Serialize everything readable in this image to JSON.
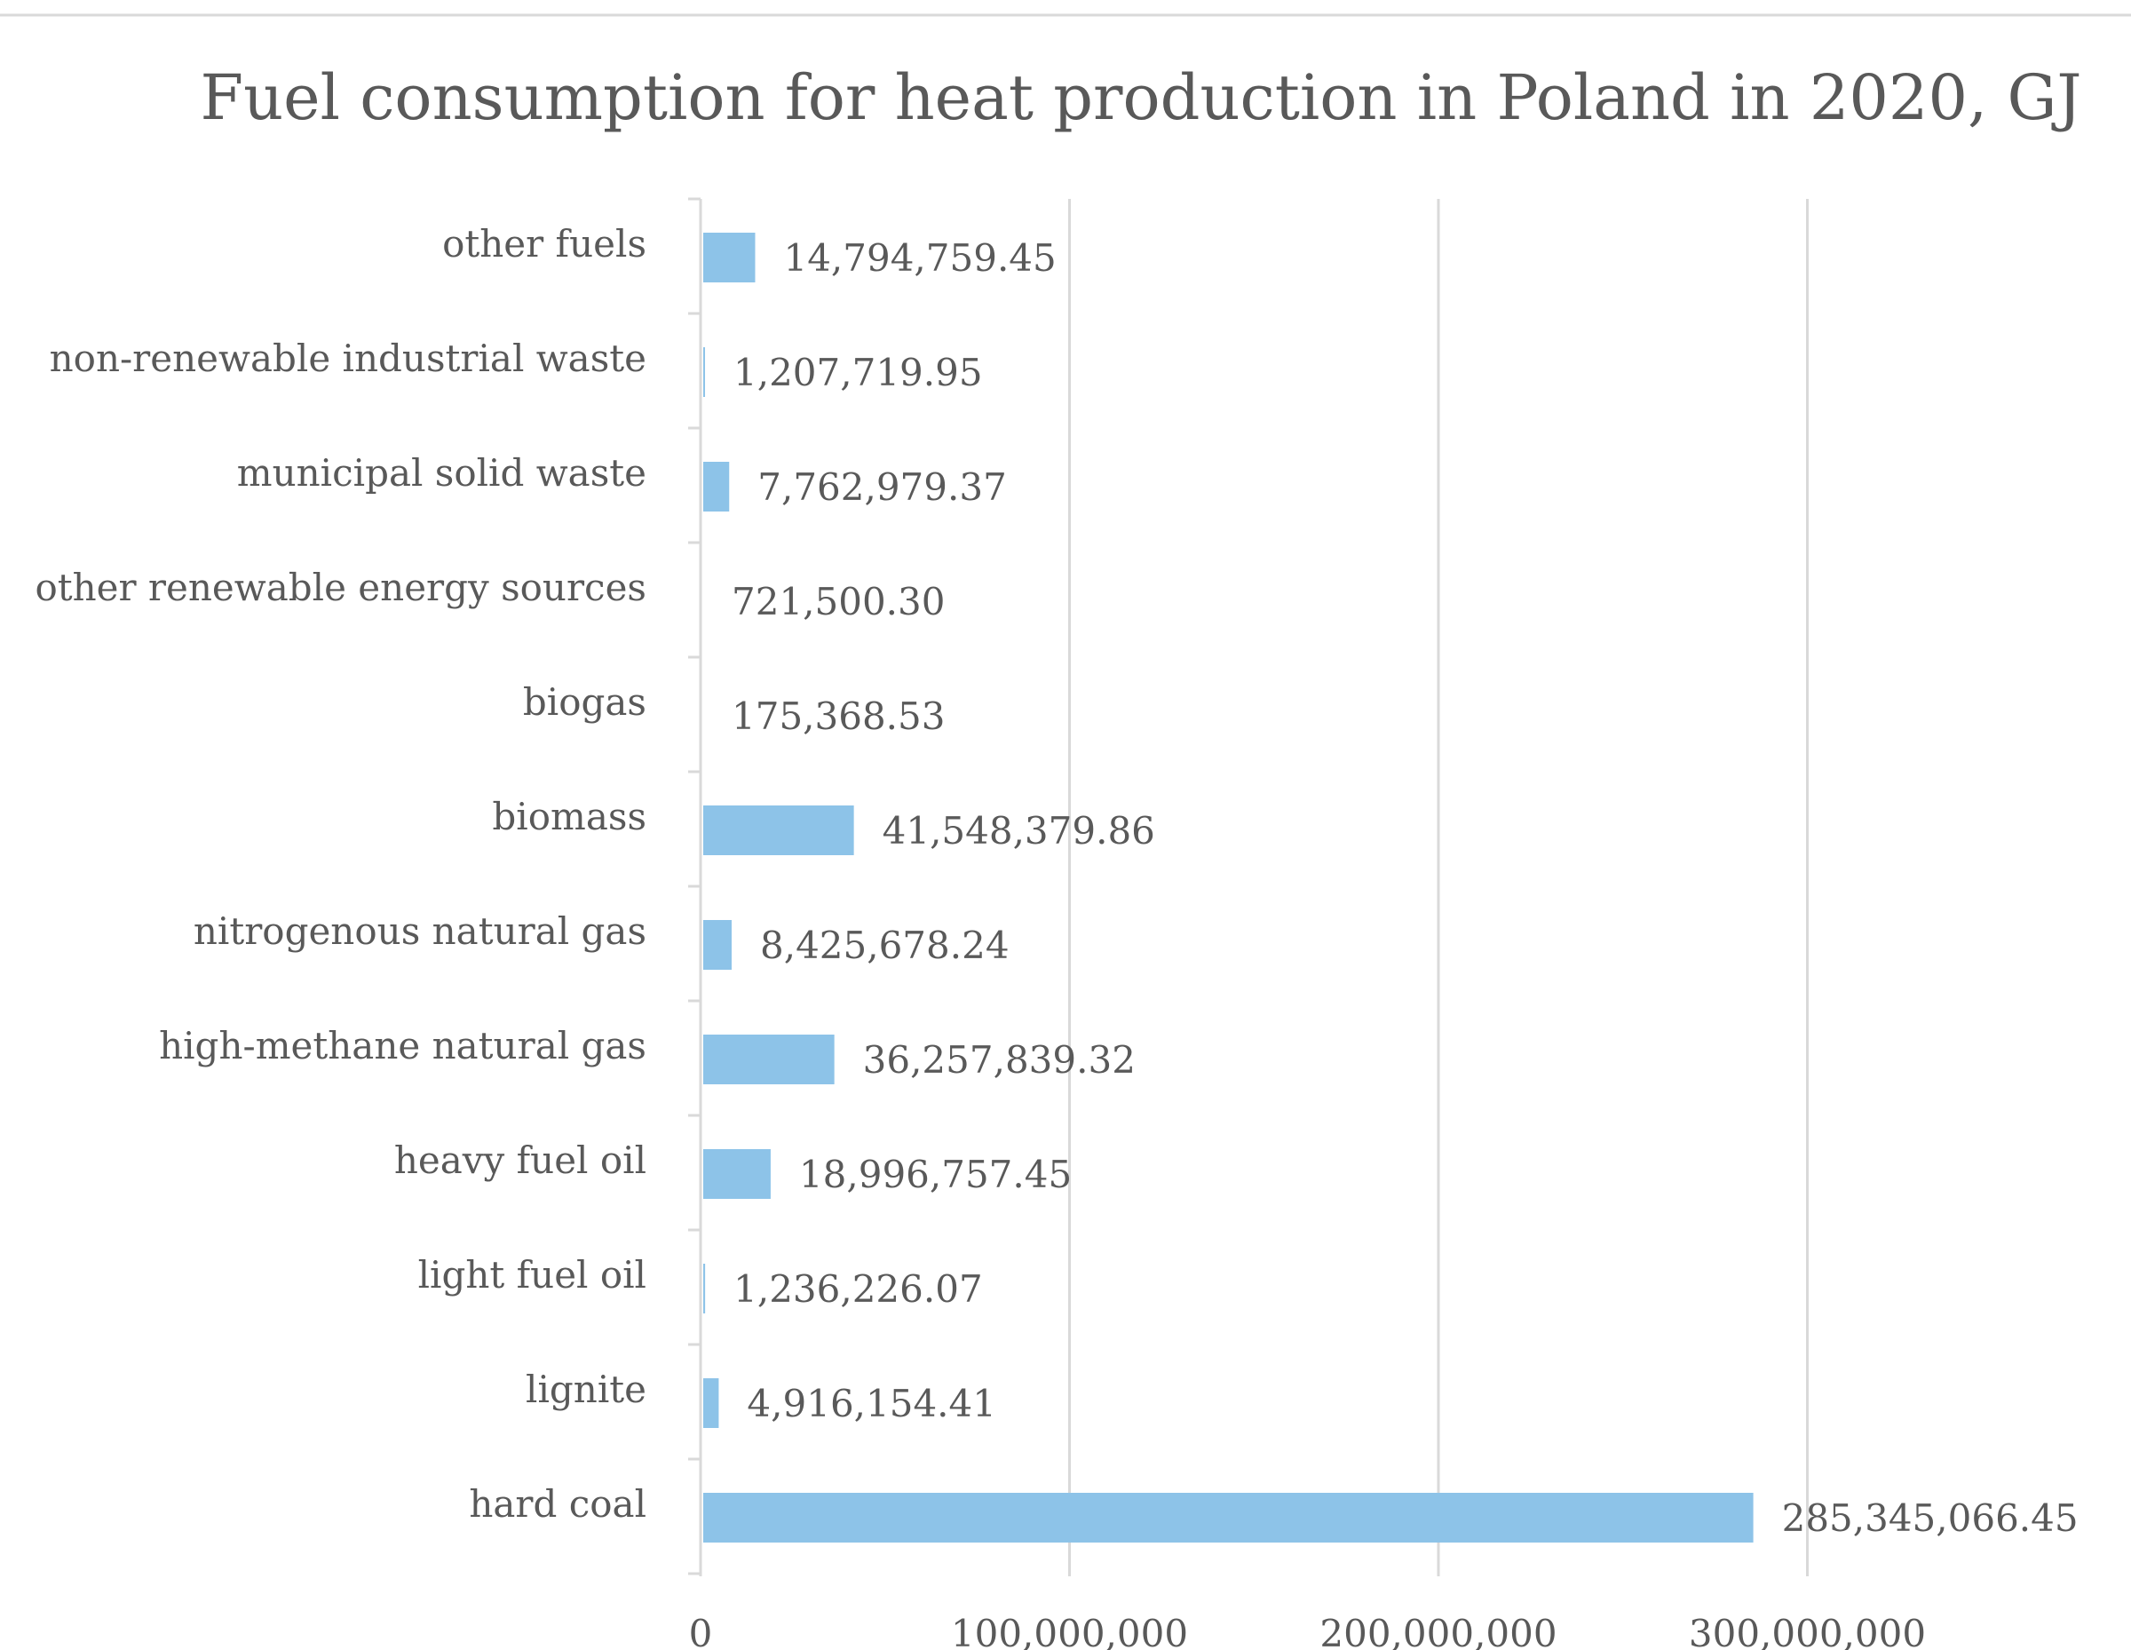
{
  "chart_data": {
    "type": "bar",
    "orientation": "horizontal",
    "title": "Fuel consumption for heat production in Poland in 2020, GJ",
    "xlabel": "",
    "ylabel": "",
    "xlim": [
      0,
      350000000
    ],
    "x_ticks": [
      {
        "value": 0,
        "label": "0"
      },
      {
        "value": 100000000,
        "label": "100,000,000"
      },
      {
        "value": 200000000,
        "label": "200,000,000"
      },
      {
        "value": 300000000,
        "label": "300,000,000"
      }
    ],
    "grid": "vertical",
    "legend": "none",
    "categories": [
      "other fuels",
      "non-renewable industrial waste",
      "municipal solid waste",
      "other renewable energy sources",
      "biogas",
      "biomass",
      "nitrogenous natural gas",
      "high-methane natural gas",
      "heavy fuel oil",
      "light fuel oil",
      "lignite",
      "hard coal"
    ],
    "values": [
      14794759.45,
      1207719.95,
      7762979.37,
      721500.3,
      175368.53,
      41548379.86,
      8425678.24,
      36257839.32,
      18996757.45,
      1236226.07,
      4916154.41,
      285345066.45
    ],
    "value_labels": [
      "14,794,759.45",
      "1,207,719.95",
      "7,762,979.37",
      "721,500.30",
      "175,368.53",
      "41,548,379.86",
      "8,425,678.24",
      "36,257,839.32",
      "18,996,757.45",
      "1,236,226.07",
      "4,916,154.41",
      "285,345,066.45"
    ],
    "colors": {
      "bar": "#8dc3e8",
      "text": "#595959",
      "title": "#595959",
      "grid": "#d9d9d9",
      "axis": "#d9d9d9",
      "border": "#d9d9d9"
    }
  }
}
